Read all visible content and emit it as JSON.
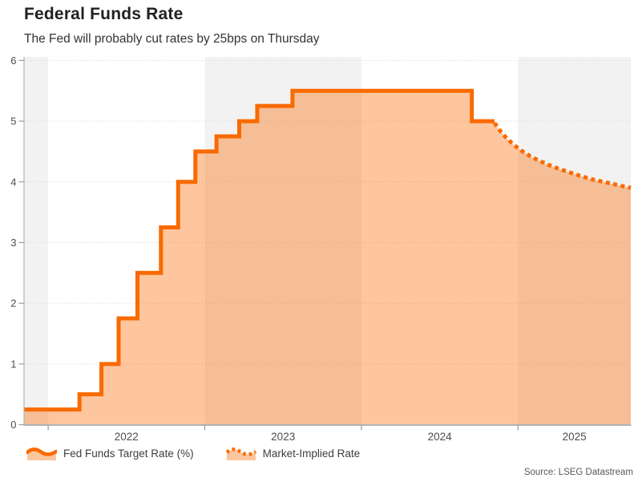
{
  "header": {
    "title": "Federal Funds Rate",
    "subtitle": "The Fed will probably cut rates by 25bps on Thursday"
  },
  "source": "Source: LSEG Datastream",
  "legend": [
    {
      "label": "Fed Funds Target Rate (%)",
      "style": "solid"
    },
    {
      "label": "Market-Implied Rate",
      "style": "dotted"
    }
  ],
  "colors": {
    "accent": "#f96a00",
    "area_fill_opacity": 0.38,
    "fill_tint": "#fbc69d",
    "year_band": "#f2f2f2",
    "grid": "#dbdbdb",
    "axis": "#9b9b9b",
    "spine": "#b5b5b5",
    "title": "#212121",
    "subtitle": "#333333",
    "tick_label": "#4d4d4d",
    "source_text": "#595959"
  },
  "chart_data": {
    "type": "area",
    "title": "Federal Funds Rate",
    "xlabel": "",
    "ylabel": "",
    "x_domain": [
      2021.846,
      2025.72
    ],
    "ylim": [
      0,
      6
    ],
    "y_ticks": [
      0,
      1,
      2,
      3,
      4,
      5,
      6
    ],
    "x_year_ticks": [
      2022,
      2023,
      2024,
      2025
    ],
    "x_tick_labels": [
      "2022",
      "2023",
      "2024",
      "2025"
    ],
    "grid": "dotted-horizontal",
    "legend_position": "bottom-left",
    "shaded_bands": [
      [
        2021.846,
        2022
      ],
      [
        2023,
        2024
      ],
      [
        2025,
        2025.72
      ]
    ],
    "series": [
      {
        "name": "Fed Funds Target Rate (%)",
        "style": "step-after-solid",
        "end_x": 2024.85,
        "points": [
          [
            2021.846,
            0.25
          ],
          [
            2022.2,
            0.5
          ],
          [
            2022.34,
            1.0
          ],
          [
            2022.45,
            1.75
          ],
          [
            2022.57,
            2.5
          ],
          [
            2022.72,
            3.25
          ],
          [
            2022.83,
            4.0
          ],
          [
            2022.94,
            4.5
          ],
          [
            2023.075,
            4.75
          ],
          [
            2023.22,
            5.0
          ],
          [
            2023.335,
            5.25
          ],
          [
            2023.56,
            5.5
          ],
          [
            2024.705,
            5.0
          ]
        ]
      },
      {
        "name": "Market-Implied Rate",
        "style": "dotted-curve",
        "points": [
          [
            2024.85,
            4.97
          ],
          [
            2024.886,
            4.84
          ],
          [
            2024.927,
            4.72
          ],
          [
            2024.973,
            4.61
          ],
          [
            2025.024,
            4.51
          ],
          [
            2025.08,
            4.42
          ],
          [
            2025.142,
            4.34
          ],
          [
            2025.213,
            4.26
          ],
          [
            2025.29,
            4.19
          ],
          [
            2025.372,
            4.12
          ],
          [
            2025.459,
            4.05
          ],
          [
            2025.546,
            4.0
          ],
          [
            2025.633,
            3.95
          ],
          [
            2025.72,
            3.9
          ]
        ]
      }
    ]
  }
}
